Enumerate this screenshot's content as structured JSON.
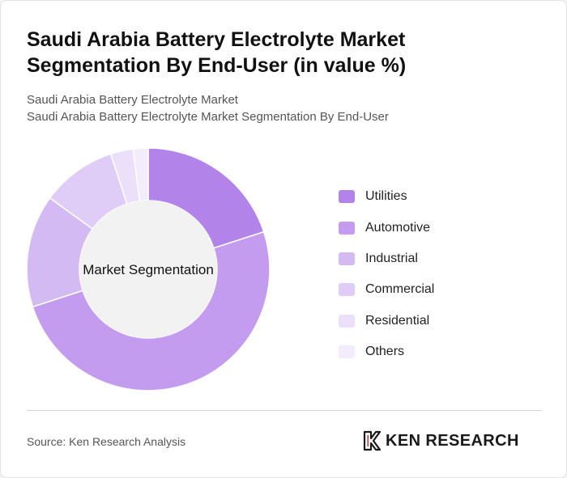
{
  "title": "Saudi Arabia Battery Electrolyte Market Segmentation By End-User (in value %)",
  "subtitle_1": "Saudi Arabia Battery Electrolyte Market",
  "subtitle_2": "Saudi Arabia Battery Electrolyte Market Segmentation By End-User",
  "source": "Source: Ken Research Analysis",
  "logo": {
    "name": "KEN RESEARCH"
  },
  "chart_data": {
    "type": "pie",
    "variant": "donut",
    "center_label": "Market Segmentation",
    "categories": [
      "Utilities",
      "Automotive",
      "Industrial",
      "Commercial",
      "Residential",
      "Others"
    ],
    "values": [
      20,
      50,
      15,
      10,
      3,
      2
    ],
    "colors": [
      "#b283e9",
      "#c49cef",
      "#d4baf3",
      "#e0cdf7",
      "#ebdffa",
      "#f3ecfc"
    ],
    "legend_position": "right"
  }
}
